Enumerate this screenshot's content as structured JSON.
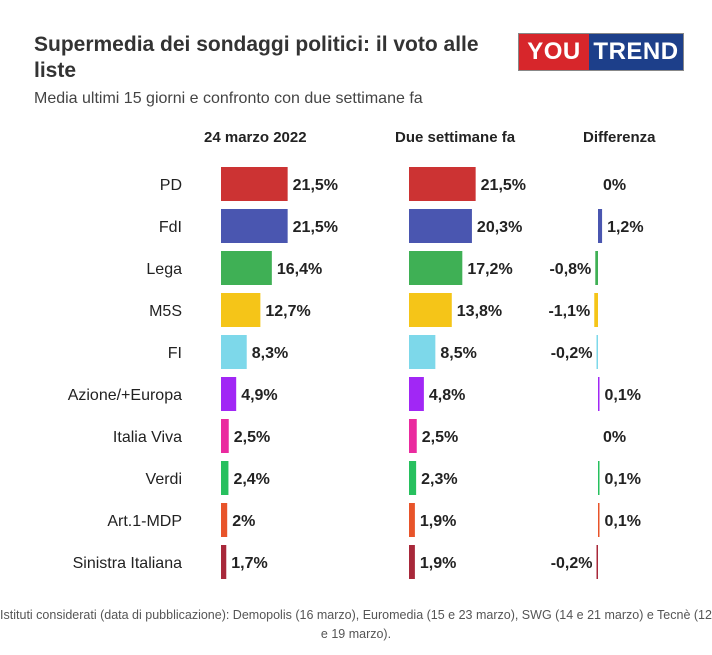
{
  "title": "Supermedia dei sondaggi politici: il voto alle liste",
  "subtitle": "Media ultimi 15 giorni e confronto con due settimane fa",
  "logo": {
    "part1": "YOU",
    "part2": "TREND"
  },
  "column_headers": {
    "current": "24 marzo 2022",
    "previous": "Due settimane fa",
    "difference": "Differenza"
  },
  "footnote": "Istituti considerati (data di pubblicazione): Demopolis (16 marzo), Euromedia (15 e 23 marzo), SWG (14 e 21 marzo) e Tecnè (12 e 19 marzo).",
  "chart_data": {
    "type": "bar",
    "categories": [
      "PD",
      "FdI",
      "Lega",
      "M5S",
      "FI",
      "Azione/+Europa",
      "Italia Viva",
      "Verdi",
      "Art.1-MDP",
      "Sinistra Italiana"
    ],
    "colors": [
      "#cc3333",
      "#4a56b0",
      "#3fb055",
      "#f5c518",
      "#7dd8ea",
      "#a127f5",
      "#ea2a9f",
      "#27c05e",
      "#e8542a",
      "#a8283a"
    ],
    "series": [
      {
        "name": "24 marzo 2022",
        "values": [
          21.5,
          21.5,
          16.4,
          12.7,
          8.3,
          4.9,
          2.5,
          2.4,
          2,
          1.7
        ],
        "labels": [
          "21,5%",
          "21,5%",
          "16,4%",
          "12,7%",
          "8,3%",
          "4,9%",
          "2,5%",
          "2,4%",
          "2%",
          "1,7%"
        ]
      },
      {
        "name": "Due settimane fa",
        "values": [
          21.5,
          20.3,
          17.2,
          13.8,
          8.5,
          4.8,
          2.5,
          2.3,
          1.9,
          1.9
        ],
        "labels": [
          "21,5%",
          "20,3%",
          "17,2%",
          "13,8%",
          "8,5%",
          "4,8%",
          "2,5%",
          "2,3%",
          "1,9%",
          "1,9%"
        ]
      },
      {
        "name": "Differenza",
        "values": [
          0,
          1.2,
          -0.8,
          -1.1,
          -0.2,
          0.1,
          0,
          0.1,
          0.1,
          -0.2
        ],
        "labels": [
          "0%",
          "1,2%",
          "-0,8%",
          "-1,1%",
          "-0,2%",
          "0,1%",
          "0%",
          "0,1%",
          "0,1%",
          "-0,2%"
        ]
      }
    ]
  }
}
